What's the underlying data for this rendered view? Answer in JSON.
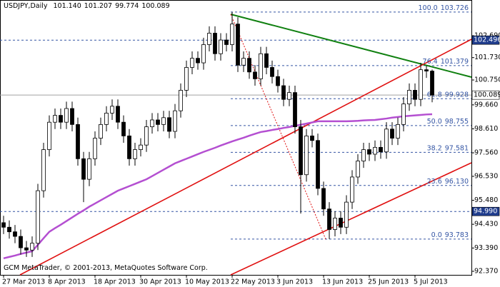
{
  "chart_data": {
    "type": "candlestick",
    "title": "USDJPY,Daily",
    "last_bar_labels": [
      "101.140",
      "101.207",
      "99.774",
      "100.089"
    ],
    "footer": "GCM MetaTrader, © 2001-2013, MetaQuotes Software Corp.",
    "categories": [
      "27 Mar 2013",
      null,
      null,
      null,
      null,
      null,
      null,
      null,
      "8 Apr 2013",
      null,
      null,
      null,
      null,
      null,
      null,
      null,
      "18 Apr 2013",
      null,
      null,
      null,
      null,
      null,
      null,
      null,
      "30 Apr 2013",
      null,
      null,
      null,
      null,
      null,
      null,
      null,
      "10 May 2013",
      null,
      null,
      null,
      null,
      null,
      null,
      null,
      "22 May 2013",
      null,
      null,
      null,
      null,
      null,
      null,
      null,
      "3 Jun 2013",
      null,
      null,
      null,
      null,
      null,
      null,
      null,
      "13 Jun 2013",
      null,
      null,
      null,
      null,
      null,
      null,
      null,
      "25 Jun 2013",
      null,
      null,
      null,
      null,
      null,
      null,
      null,
      "5 Jul 2013",
      null,
      null,
      null
    ],
    "open": [
      94.5,
      94.3,
      94.1,
      93.9,
      93.4,
      93.3,
      93.6,
      95.9,
      97.7,
      98.9,
      99.2,
      98.9,
      99.5,
      98.8,
      97.3,
      96.4,
      97.3,
      98.2,
      98.8,
      99.3,
      99.6,
      98.9,
      98.3,
      97.3,
      97.7,
      97.9,
      98.7,
      99.0,
      98.8,
      99.1,
      98.5,
      99.4,
      100.3,
      101.3,
      101.7,
      101.5,
      102.3,
      102.8,
      101.9,
      102.5,
      102.3,
      103.2,
      101.4,
      101.7,
      101.1,
      100.8,
      101.9,
      101.3,
      100.9,
      100.5,
      99.9,
      100.2,
      98.7,
      96.6,
      98.3,
      98.1,
      96.0,
      95.1,
      94.2,
      94.7,
      94.3,
      95.4,
      96.5,
      97.2,
      97.7,
      97.5,
      97.8,
      97.6,
      98.6,
      98.2,
      98.8,
      99.7,
      100.3,
      99.9,
      101.2,
      101.14
    ],
    "high": [
      94.8,
      94.6,
      94.4,
      94.2,
      93.7,
      93.9,
      96.2,
      98.0,
      99.2,
      99.5,
      99.5,
      99.8,
      99.8,
      99.1,
      97.6,
      97.6,
      98.5,
      99.1,
      99.6,
      99.9,
      99.9,
      99.2,
      98.6,
      98.0,
      98.2,
      99.0,
      99.3,
      99.3,
      99.4,
      99.4,
      99.7,
      100.6,
      101.6,
      102.0,
      102.0,
      102.6,
      103.1,
      103.1,
      102.8,
      102.8,
      103.73,
      103.5,
      102.0,
      102.0,
      101.4,
      102.2,
      102.2,
      101.6,
      101.2,
      100.8,
      100.5,
      100.5,
      99.0,
      98.6,
      98.6,
      98.4,
      96.3,
      95.4,
      95.0,
      95.0,
      95.7,
      96.8,
      97.5,
      98.0,
      98.0,
      98.1,
      98.1,
      98.9,
      98.9,
      99.1,
      100.0,
      100.6,
      100.6,
      101.5,
      101.38,
      101.207
    ],
    "low": [
      94.0,
      93.8,
      93.6,
      93.1,
      93.0,
      93.0,
      93.3,
      95.6,
      97.4,
      98.6,
      98.6,
      98.6,
      98.5,
      97.0,
      95.4,
      96.1,
      97.0,
      97.9,
      98.5,
      99.0,
      98.6,
      98.0,
      97.0,
      97.0,
      97.4,
      97.6,
      98.4,
      98.5,
      98.5,
      98.2,
      98.2,
      99.1,
      100.0,
      101.0,
      101.2,
      101.2,
      102.0,
      101.6,
      101.6,
      102.0,
      102.0,
      101.1,
      101.1,
      100.8,
      100.5,
      100.5,
      101.0,
      100.6,
      100.2,
      99.6,
      99.6,
      98.4,
      94.9,
      96.3,
      97.8,
      95.7,
      94.8,
      93.78,
      93.9,
      94.0,
      94.0,
      95.1,
      96.2,
      96.9,
      97.2,
      97.2,
      97.3,
      97.3,
      97.9,
      97.9,
      98.5,
      99.4,
      99.6,
      99.6,
      100.84,
      99.774
    ],
    "close": [
      94.3,
      94.1,
      93.9,
      93.4,
      93.3,
      93.6,
      95.9,
      97.7,
      98.9,
      99.2,
      98.9,
      99.5,
      98.8,
      97.3,
      96.4,
      97.3,
      98.2,
      98.8,
      99.3,
      99.6,
      98.9,
      98.3,
      97.3,
      97.7,
      97.9,
      98.7,
      99.0,
      98.8,
      99.1,
      98.5,
      99.4,
      100.3,
      101.3,
      101.7,
      101.5,
      102.3,
      102.8,
      101.9,
      102.5,
      102.3,
      103.2,
      101.4,
      101.7,
      101.1,
      100.8,
      101.9,
      101.3,
      100.9,
      100.5,
      99.9,
      100.2,
      98.7,
      96.6,
      98.3,
      98.1,
      96.0,
      95.1,
      94.2,
      94.7,
      94.3,
      95.4,
      96.5,
      97.2,
      97.7,
      97.5,
      97.8,
      97.6,
      98.6,
      98.2,
      98.8,
      99.7,
      100.3,
      99.9,
      101.2,
      101.14,
      100.089
    ],
    "bull_color": "#ffffff",
    "bear_color": "#000000",
    "wick_color": "#000000",
    "moving_average": {
      "color": "#b44fd1",
      "values": [
        92.94,
        93.0,
        93.06,
        93.13,
        93.19,
        93.25,
        93.53,
        93.82,
        94.1,
        94.26,
        94.41,
        94.57,
        94.73,
        94.89,
        95.04,
        95.2,
        95.34,
        95.48,
        95.62,
        95.76,
        95.9,
        96.0,
        96.1,
        96.2,
        96.3,
        96.4,
        96.54,
        96.68,
        96.82,
        96.96,
        97.1,
        97.2,
        97.3,
        97.4,
        97.5,
        97.6,
        97.69,
        97.78,
        97.88,
        97.97,
        98.06,
        98.14,
        98.22,
        98.31,
        98.39,
        98.47,
        98.51,
        98.56,
        98.6,
        98.65,
        98.69,
        98.74,
        98.79,
        98.84,
        98.89,
        98.94,
        98.94,
        98.94,
        98.94,
        98.94,
        98.94,
        98.95,
        98.96,
        98.98,
        98.99,
        99.0,
        99.03,
        99.06,
        99.1,
        99.13,
        99.16,
        99.18,
        99.2,
        99.22,
        99.24,
        99.25
      ]
    },
    "ylim": [
      92.214,
      104.253
    ],
    "yticks": [
      {
        "value": 102.69,
        "label": "102.690"
      },
      {
        "value": 101.73,
        "label": "101.730"
      },
      {
        "value": 100.75,
        "label": "100.750"
      },
      {
        "value": 99.66,
        "label": "99.660"
      },
      {
        "value": 98.61,
        "label": "98.610"
      },
      {
        "value": 97.56,
        "label": "97.560"
      },
      {
        "value": 96.53,
        "label": "96.530"
      },
      {
        "value": 95.48,
        "label": "95.480"
      },
      {
        "value": 94.43,
        "label": "94.430"
      },
      {
        "value": 93.39,
        "label": "93.390"
      },
      {
        "value": 92.37,
        "label": "92.370"
      }
    ],
    "fibonacci": {
      "color": "#3455a4",
      "levels": [
        {
          "level": {
            "value": 100,
            "label": "100.0"
          },
          "price": 103.726
        },
        {
          "level": 76.4,
          "price": 101.379
        },
        {
          "level": 61.8,
          "price": 99.928
        },
        {
          "level": {
            "value": 50,
            "label": "50.0"
          },
          "price": 98.755
        },
        {
          "level": 38.2,
          "price": 97.581
        },
        {
          "level": 23.6,
          "price": {
            "value": 96.13,
            "label": "96.130"
          }
        },
        {
          "level": {
            "value": 0,
            "label": "0.0"
          },
          "price": 93.783
        }
      ]
    },
    "price_levels": [
      {
        "price": 102.496,
        "style": "dashed",
        "color": "#3455a4",
        "box": "#1f3c8c",
        "text_color": "#ffffff"
      },
      {
        "price": 100.089,
        "style": "solid",
        "color": "#a0a0a0",
        "box": "#ffffff",
        "text_color": "#000000"
      },
      {
        "price": {
          "value": 94.99,
          "label": "94.990"
        },
        "style": "dashed",
        "color": "#3455a4",
        "box": "#1f3c8c",
        "text_color": "#ffffff"
      }
    ]
  }
}
